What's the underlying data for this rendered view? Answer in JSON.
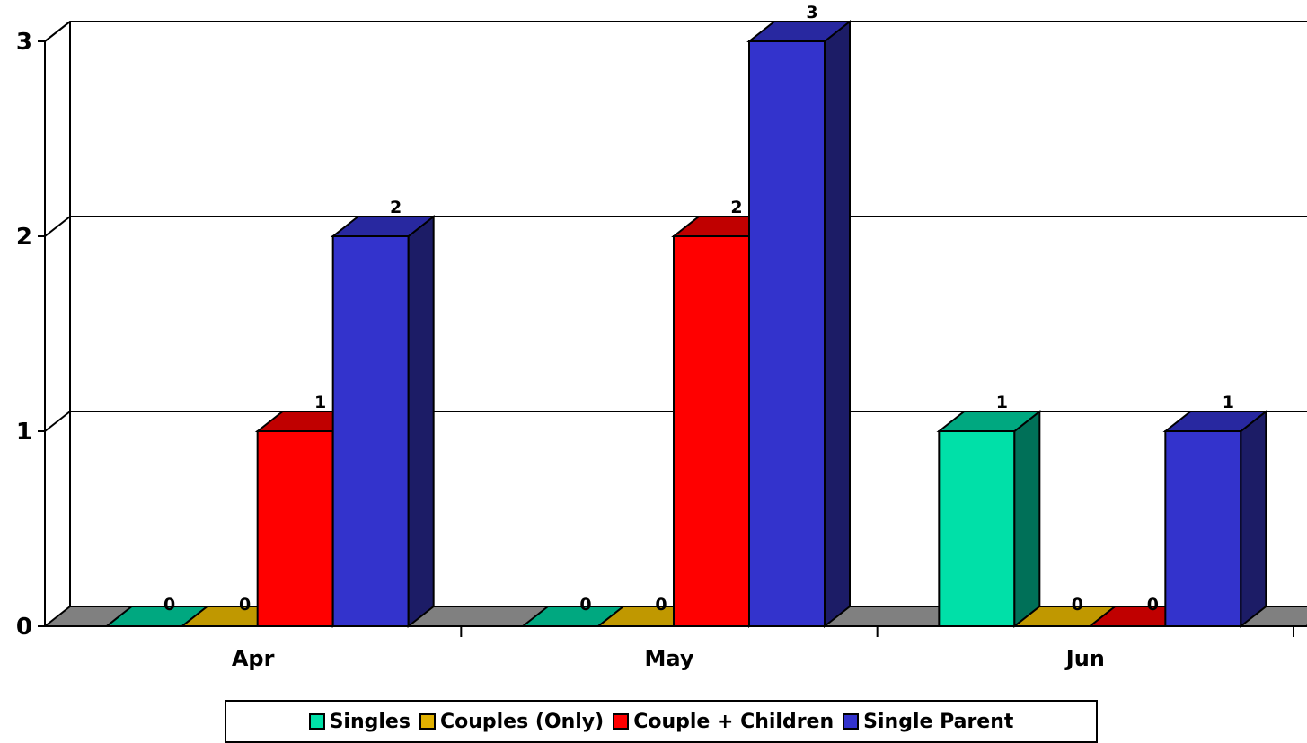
{
  "chart_data": {
    "type": "bar",
    "categories": [
      "Apr",
      "May",
      "Jun"
    ],
    "series": [
      {
        "name": "Singles",
        "values": [
          0,
          0,
          1
        ],
        "color": "#00E0A8",
        "side_color": "#007058",
        "top_color": "#00A880"
      },
      {
        "name": "Couples (Only)",
        "values": [
          0,
          0,
          0
        ],
        "color": "#E0B000",
        "side_color": "#806400",
        "top_color": "#C09800"
      },
      {
        "name": "Couple + Children",
        "values": [
          1,
          2,
          0
        ],
        "color": "#FF0000",
        "side_color": "#800000",
        "top_color": "#C00000"
      },
      {
        "name": "Single Parent",
        "values": [
          2,
          3,
          1
        ],
        "color": "#3333CC",
        "side_color": "#1C1C66",
        "top_color": "#2828A0"
      }
    ],
    "y_ticks": [
      "0",
      "1",
      "2",
      "3"
    ],
    "ylim": [
      0,
      3
    ],
    "grid": true,
    "legend_position": "bottom",
    "title": "",
    "xlabel": "",
    "ylabel": ""
  }
}
